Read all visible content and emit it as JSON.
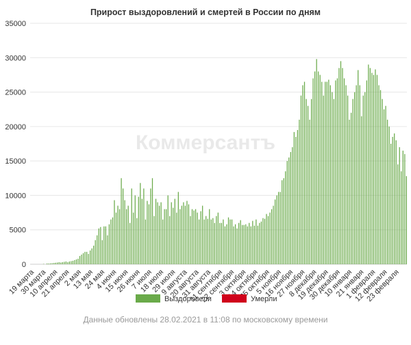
{
  "watermark": "Коммерсантъ",
  "footer": "Данные обновлены 28.02.2021 в 11:08 по московскому времени",
  "colors": {
    "recovered": "#6aaa4a",
    "deaths": "#d0021b",
    "grid": "#e6e6e6"
  },
  "chart_data": {
    "type": "bar",
    "stacked": true,
    "title": "Прирост выздоровлений и смертей в России по дням",
    "xlabel": "",
    "ylabel": "",
    "ylim": [
      0,
      35000
    ],
    "yticks": [
      0,
      5000,
      10000,
      15000,
      20000,
      25000,
      30000,
      35000
    ],
    "grid": true,
    "legend_position": "bottom",
    "x_start": "19 марта",
    "x_end": "28 февраля",
    "xtick_labels": [
      "19 марта",
      "30 марта",
      "10 апреля",
      "21 апреля",
      "2 мая",
      "13 мая",
      "24 мая",
      "4 июня",
      "15 июня",
      "26 июня",
      "7 июля",
      "18 июля",
      "29 июля",
      "9 августа",
      "20 августа",
      "31 августа",
      "11 сентября",
      "22 сентября",
      "3 октября",
      "14 октября",
      "25 октября",
      "5 ноября",
      "16 ноября",
      "27 ноября",
      "8 декабря",
      "19 декабря",
      "30 декабря",
      "10 января",
      "21 января",
      "1 февраля",
      "12 февраля",
      "23 февраля"
    ],
    "series": [
      {
        "name": "Выздоровели",
        "color": "#6aaa4a",
        "values": [
          0,
          0,
          0,
          0,
          0,
          0,
          0,
          0,
          0,
          0,
          0,
          0,
          0,
          0,
          0,
          50,
          0,
          0,
          0,
          100,
          0,
          100,
          0,
          120,
          0,
          150,
          0,
          180,
          0,
          220,
          0,
          250,
          0,
          300,
          0,
          250,
          0,
          300,
          0,
          350,
          0,
          400,
          0,
          300,
          0,
          400,
          0,
          450,
          0,
          500,
          0,
          600,
          0,
          700,
          0,
          800,
          0,
          1200,
          0,
          1400,
          0,
          1600,
          0,
          1800,
          0,
          1800,
          0,
          1500,
          0,
          2000,
          0,
          2300,
          0,
          2700,
          0,
          3500,
          0,
          4200,
          0,
          5200,
          0,
          5400,
          0,
          3500,
          0,
          5500,
          0,
          5500,
          0,
          4200,
          0,
          5800,
          0,
          6500,
          0,
          6800,
          0,
          9300,
          0,
          7500,
          0,
          8500,
          0,
          8000,
          0,
          12500,
          0,
          11000,
          0,
          9300,
          0,
          8000,
          0,
          8500,
          0,
          6000,
          0,
          11000,
          0,
          7500,
          0,
          10000,
          0,
          6700,
          0,
          9800,
          0,
          11800,
          0,
          9500,
          0,
          11000,
          0,
          6500,
          0,
          9200,
          0,
          8700,
          0,
          11000,
          0,
          12500,
          0,
          7000,
          0,
          9500,
          0,
          9000,
          0,
          8500,
          0,
          9000,
          0,
          6500,
          0,
          8000,
          0,
          8000,
          0,
          10000,
          0,
          7000,
          0,
          9000,
          0,
          8200,
          0,
          9500,
          0,
          7500,
          0,
          10500,
          0,
          8000,
          0,
          8500,
          0,
          9000,
          0,
          8500,
          0,
          9200,
          0,
          8700,
          0,
          7000,
          0,
          8000,
          0,
          7800,
          0,
          8000,
          0,
          7500,
          0,
          6500,
          0,
          7700,
          0,
          8500,
          0,
          6500,
          0,
          7000,
          0,
          6600,
          0,
          8000,
          0,
          6500,
          0,
          6700,
          0,
          6000,
          0,
          7000,
          0,
          7500,
          0,
          6000,
          0,
          6000,
          0,
          6500,
          0,
          5500,
          0,
          5800,
          0,
          6800,
          0,
          6500,
          0,
          6500,
          0,
          5500,
          0,
          5800,
          0,
          5200,
          0,
          6000,
          0,
          6400,
          0,
          5700,
          0,
          5700,
          0,
          5800,
          0,
          5500,
          0,
          6000,
          0,
          5500,
          0,
          6300,
          0,
          5600,
          0,
          6500,
          0,
          5600,
          0,
          6000,
          0,
          6200,
          0,
          6700,
          0,
          6600,
          0,
          7300,
          0,
          7000,
          0,
          7500,
          0,
          8000,
          0,
          8500,
          0,
          9400,
          0,
          10000,
          0,
          10500,
          0,
          10500,
          0,
          12200,
          0,
          12500,
          0,
          13500,
          0,
          15000,
          0,
          15500,
          0,
          16300,
          0,
          17000,
          0,
          19200,
          0,
          18500,
          0,
          19500,
          0,
          21000,
          0,
          24500,
          0,
          26000,
          0,
          26500,
          0,
          24000,
          0,
          23000,
          0,
          21000,
          0,
          24000,
          0,
          27000,
          0,
          28000,
          0,
          29800,
          0,
          28000,
          0,
          27500,
          0,
          26500,
          0,
          24500,
          0,
          26500,
          0,
          26500,
          0,
          26800,
          0,
          26000,
          0,
          25000,
          0,
          24000,
          0,
          26700,
          0,
          27000,
          0,
          28500,
          0,
          29500,
          0,
          28500,
          0,
          27000,
          0,
          26000,
          0,
          24500,
          0,
          21000,
          0,
          22000,
          0,
          24000,
          0,
          25000,
          0,
          26000,
          0,
          28200,
          0,
          26000,
          0,
          21500,
          0,
          24500,
          0,
          25000,
          0,
          26700,
          0,
          29000,
          0,
          28500,
          0,
          27800,
          0,
          27500,
          0,
          28300,
          0,
          27500,
          0,
          26000,
          0,
          25300,
          0,
          24000,
          0,
          22500,
          0,
          23000,
          0,
          21000,
          0,
          20000,
          0,
          17500,
          0,
          18500,
          0,
          19000,
          0,
          18000,
          0,
          14500,
          0,
          17000,
          0,
          13500,
          0,
          16500,
          0,
          16000,
          0,
          12800
        ]
      },
      {
        "name": "Умерли",
        "color": "#d0021b",
        "values": [
          0,
          0,
          0,
          0,
          0,
          0,
          0,
          0,
          0,
          0,
          0,
          0,
          0,
          0,
          0,
          0,
          0,
          0,
          0,
          0,
          0,
          0,
          0,
          0,
          0,
          0,
          0,
          0,
          0,
          0,
          0,
          0,
          0,
          0,
          0,
          0,
          0,
          0,
          0,
          0,
          0,
          0,
          0,
          0,
          0,
          0,
          0,
          0,
          0,
          0,
          0,
          0,
          0,
          0,
          0,
          0,
          0,
          0,
          0,
          0,
          0,
          0,
          0,
          0,
          0,
          0,
          0,
          0,
          0,
          0,
          0,
          0,
          0,
          0,
          0,
          0,
          0,
          0,
          0,
          0,
          0,
          0,
          0,
          0,
          0,
          0,
          0,
          0,
          0,
          0,
          0,
          0,
          0,
          0,
          0,
          0,
          0,
          0,
          0,
          0,
          0,
          0,
          0,
          0,
          0,
          0,
          0,
          0,
          0,
          0,
          0,
          0,
          0,
          0,
          0,
          0,
          0,
          0,
          0,
          0,
          0,
          0,
          0,
          0,
          0,
          0,
          0,
          0,
          0,
          0,
          0,
          0,
          0,
          0,
          0,
          0,
          0,
          0,
          0,
          0,
          0,
          0,
          0,
          0,
          0,
          0,
          0,
          0,
          0,
          0,
          0,
          0,
          0,
          0,
          0,
          0,
          0,
          0,
          0,
          0,
          0,
          0,
          0,
          0,
          0,
          0,
          0,
          0,
          0,
          0,
          0,
          0,
          0,
          0,
          0,
          0,
          0,
          0,
          0,
          0,
          0,
          0,
          0,
          0,
          0,
          0,
          0,
          0,
          0,
          0,
          0,
          0,
          0,
          0,
          0,
          0,
          0,
          0,
          0,
          0,
          0,
          0,
          0,
          0,
          0,
          0,
          0,
          0,
          0,
          0,
          0,
          0,
          0,
          0,
          0,
          0,
          0,
          0,
          0,
          0,
          0,
          0,
          0,
          0,
          0,
          0,
          0,
          0,
          0,
          0,
          0,
          0,
          0,
          0,
          0,
          0,
          0,
          0,
          0,
          0,
          0,
          0,
          0,
          0,
          0,
          0,
          0,
          0,
          0,
          0,
          0,
          0,
          0,
          0,
          0,
          0,
          0,
          0,
          0,
          0,
          0,
          0,
          0,
          0,
          0,
          0,
          0,
          0,
          0,
          0,
          0,
          0,
          0,
          0,
          0,
          0,
          0,
          0,
          0,
          0,
          0,
          0,
          0,
          0,
          0,
          0,
          0,
          0,
          0,
          0,
          0,
          0,
          0,
          0,
          0,
          0,
          0,
          0,
          0,
          0,
          0,
          0,
          0,
          0,
          0,
          0,
          0,
          0,
          0,
          0,
          0,
          0,
          0,
          0,
          0,
          0,
          0,
          0,
          0,
          0,
          0,
          0,
          0,
          0,
          0,
          0,
          0,
          0,
          0,
          0,
          0,
          0,
          0,
          0,
          0,
          0,
          0,
          0,
          0,
          0,
          0,
          0,
          0,
          0,
          0,
          0,
          0,
          0,
          0,
          0,
          0,
          0,
          0,
          0,
          0,
          0,
          0,
          0,
          0,
          0,
          0,
          0,
          0,
          0,
          0,
          0,
          0,
          0,
          0,
          0,
          0,
          0,
          0,
          0,
          0,
          0,
          0,
          0,
          0,
          0,
          0,
          0,
          0,
          0,
          0,
          0,
          0,
          0,
          0,
          0,
          0,
          0,
          0,
          0,
          0,
          0,
          0,
          0,
          0,
          0,
          0,
          0,
          0,
          0,
          0,
          0,
          0,
          0,
          0,
          0,
          0,
          0,
          0,
          0,
          0,
          0,
          0,
          0,
          0,
          0,
          0,
          0,
          0,
          0,
          0,
          0,
          0,
          0,
          0,
          0,
          0,
          0,
          0,
          0,
          0,
          0,
          0,
          0,
          0,
          0,
          0,
          0,
          0,
          0,
          0,
          0,
          0,
          0,
          0,
          0,
          0,
          0,
          0,
          0,
          0,
          0,
          0,
          0,
          0,
          0,
          0,
          0,
          0,
          0,
          0,
          0,
          0,
          0,
          0,
          0,
          0,
          0,
          0,
          0,
          0,
          0,
          0,
          0,
          0,
          0,
          0,
          0,
          0,
          0,
          0,
          0,
          0,
          0,
          0,
          0,
          0,
          0,
          0,
          0,
          0,
          0,
          0,
          0,
          0,
          0,
          0,
          0,
          0,
          0,
          0,
          0,
          0,
          0,
          0,
          0,
          0,
          0,
          0,
          0,
          0,
          0,
          0,
          0,
          0,
          0,
          0,
          0,
          0,
          0,
          0,
          0,
          0,
          0,
          0,
          0,
          0,
          0,
          0,
          0,
          0,
          0,
          0,
          0,
          0,
          0,
          0,
          0,
          0,
          0,
          0,
          0,
          0,
          0,
          0,
          0,
          0,
          0,
          0,
          0,
          0,
          0,
          0,
          0,
          0,
          0,
          0,
          0,
          0,
          0,
          0,
          0,
          0,
          0,
          0,
          0,
          0,
          0,
          0,
          0,
          0,
          0,
          0,
          0,
          0,
          0,
          0,
          0,
          0,
          0,
          0,
          0,
          0,
          0,
          0,
          0,
          0,
          0,
          0,
          0,
          0,
          0,
          0,
          0,
          0,
          0,
          0,
          0,
          0,
          0,
          0,
          0,
          0,
          0,
          0,
          0,
          0,
          0,
          0,
          0,
          0,
          0,
          0,
          0,
          0,
          0,
          0,
          0,
          0,
          0,
          0,
          0,
          0,
          0,
          0,
          0,
          0,
          0,
          0,
          0,
          0,
          0,
          0,
          0,
          0,
          0,
          0,
          0,
          0,
          0,
          0,
          0,
          0,
          0,
          0,
          0,
          0,
          0
        ]
      }
    ]
  }
}
